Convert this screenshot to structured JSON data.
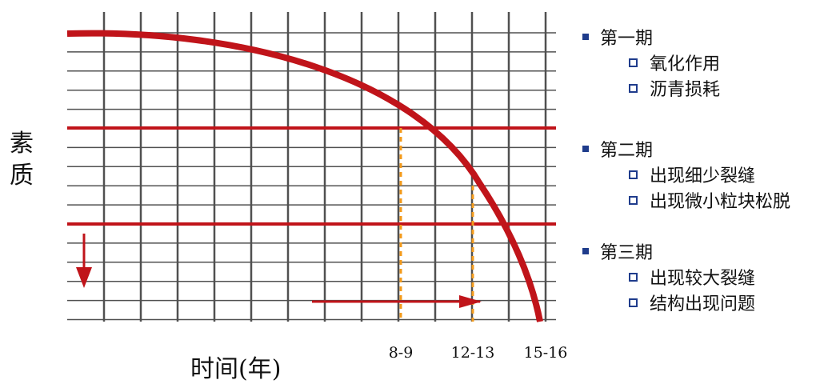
{
  "diagram": {
    "y_label": "素质",
    "x_label": "时间(年)",
    "ticks": [
      "8-9",
      "12-13",
      "15-16"
    ]
  },
  "legend": {
    "phases": [
      {
        "title": "第一期",
        "items": [
          "氧化作用",
          "沥青损耗"
        ]
      },
      {
        "title": "第二期",
        "items": [
          "出现细少裂缝",
          "出现微小粒块松脱"
        ]
      },
      {
        "title": "第三期",
        "items": [
          "出现较大裂缝",
          "结构出现问题"
        ]
      }
    ]
  },
  "colors": {
    "curve": "#c0141a",
    "grid": "#505050",
    "dashed_marker": "#f39b1c",
    "bullet": "#1f3c8c"
  }
}
